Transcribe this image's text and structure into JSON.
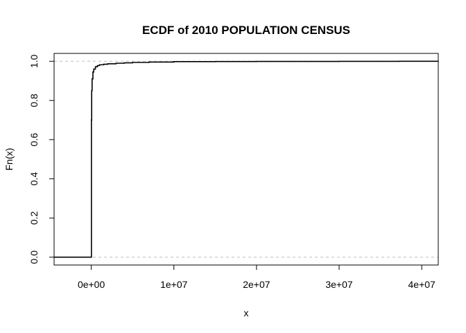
{
  "chart_data": {
    "type": "line",
    "subtype": "ecdf-step",
    "title": "ECDF of 2010 POPULATION CENSUS",
    "xlabel": "x",
    "ylabel": "Fn(x)",
    "xlim": [
      -4500000,
      42000000
    ],
    "ylim": [
      -0.04,
      1.04
    ],
    "x_ticks": [
      0,
      10000000,
      20000000,
      30000000,
      40000000
    ],
    "x_tick_labels": [
      "0e+00",
      "1e+07",
      "2e+07",
      "3e+07",
      "4e+07"
    ],
    "y_ticks": [
      0,
      0.2,
      0.4,
      0.6,
      0.8,
      1
    ],
    "y_tick_labels": [
      "0.0",
      "0.2",
      "0.4",
      "0.6",
      "0.8",
      "1.0"
    ],
    "reference_lines_y": [
      0,
      1
    ],
    "reference_line_color": "#bebebe",
    "grid": false,
    "series": [
      {
        "color": "#000000",
        "x": [
          -4500000,
          0,
          20000,
          50000,
          100000,
          200000,
          300000,
          500000,
          750000,
          1000000,
          1500000,
          2000000,
          3000000,
          4000000,
          5000000,
          7000000,
          10000000,
          15000000,
          20000000,
          30000000,
          37300000,
          42000000
        ],
        "y": [
          0,
          0,
          0.7,
          0.85,
          0.91,
          0.945,
          0.96,
          0.972,
          0.978,
          0.982,
          0.985,
          0.987,
          0.99,
          0.992,
          0.994,
          0.996,
          0.998,
          0.9985,
          0.999,
          0.9995,
          1.0,
          1.0
        ]
      }
    ]
  }
}
